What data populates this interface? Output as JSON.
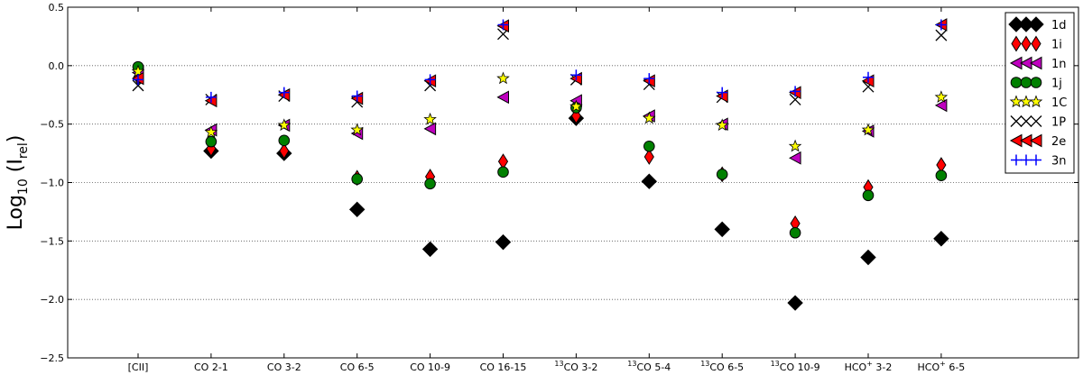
{
  "chart_data": {
    "type": "scatter",
    "title": "",
    "xlabel": "",
    "ylabel": {
      "main": "Log",
      "sub": "10",
      "open": " (I",
      "sub2": "rel",
      "close": ")"
    },
    "ylim": [
      -2.5,
      0.5
    ],
    "yticks": [
      {
        "v": 0.5,
        "label": "0.5"
      },
      {
        "v": 0.0,
        "label": "0.0"
      },
      {
        "v": -0.5,
        "label": "−0.5"
      },
      {
        "v": -1.0,
        "label": "−1.0"
      },
      {
        "v": -1.5,
        "label": "−1.5"
      },
      {
        "v": -2.0,
        "label": "−2.0"
      },
      {
        "v": -2.5,
        "label": "−2.5"
      }
    ],
    "grid": "y-dotted",
    "legend_position": "top-right",
    "categories": [
      {
        "pre": "",
        "sup": "",
        "mid": "[CII]",
        "sup2": "",
        "post": ""
      },
      {
        "pre": "",
        "sup": "",
        "mid": "CO 2-1",
        "sup2": "",
        "post": ""
      },
      {
        "pre": "",
        "sup": "",
        "mid": "CO 3-2",
        "sup2": "",
        "post": ""
      },
      {
        "pre": "",
        "sup": "",
        "mid": "CO 6-5",
        "sup2": "",
        "post": ""
      },
      {
        "pre": "",
        "sup": "",
        "mid": "CO 10-9",
        "sup2": "",
        "post": ""
      },
      {
        "pre": "",
        "sup": "",
        "mid": "CO 16-15",
        "sup2": "",
        "post": ""
      },
      {
        "pre": "",
        "sup": "13",
        "mid": "CO 3-2",
        "sup2": "",
        "post": ""
      },
      {
        "pre": "",
        "sup": "13",
        "mid": "CO 5-4",
        "sup2": "",
        "post": ""
      },
      {
        "pre": "",
        "sup": "13",
        "mid": "CO 6-5",
        "sup2": "",
        "post": ""
      },
      {
        "pre": "",
        "sup": "13",
        "mid": "CO 10-9",
        "sup2": "",
        "post": ""
      },
      {
        "pre": "",
        "sup": "",
        "mid": "HCO",
        "sup2": "+",
        "post": " 3-2"
      },
      {
        "pre": "",
        "sup": "",
        "mid": "HCO",
        "sup2": "+",
        "post": " 6-5"
      }
    ],
    "series": [
      {
        "name": "1d",
        "marker": "diamond",
        "color": "#000000",
        "values": [
          null,
          -0.73,
          -0.75,
          -1.23,
          -1.57,
          -1.51,
          -0.45,
          -0.99,
          -1.4,
          -2.03,
          -1.64,
          -1.48
        ]
      },
      {
        "name": "1i",
        "marker": "thin-diamond",
        "color": "#ff0000",
        "values": [
          -0.1,
          -0.71,
          -0.73,
          -0.96,
          -0.95,
          -0.82,
          -0.43,
          -0.78,
          -0.93,
          -1.35,
          -1.04,
          -0.85
        ]
      },
      {
        "name": "1n",
        "marker": "triangle-left",
        "color": "#bf00bf",
        "values": [
          -0.06,
          -0.55,
          -0.51,
          -0.58,
          -0.54,
          -0.27,
          -0.3,
          -0.43,
          -0.5,
          -0.79,
          -0.56,
          -0.34
        ]
      },
      {
        "name": "1j",
        "marker": "circle",
        "color": "#008000",
        "values": [
          -0.01,
          -0.65,
          -0.64,
          -0.97,
          -1.01,
          -0.91,
          -0.36,
          -0.69,
          -0.93,
          -1.43,
          -1.11,
          -0.94
        ]
      },
      {
        "name": "1C",
        "marker": "star",
        "color": "#ffff00",
        "values": [
          -0.05,
          -0.57,
          -0.51,
          -0.55,
          -0.46,
          -0.11,
          -0.35,
          -0.45,
          -0.51,
          -0.69,
          -0.55,
          -0.27
        ]
      },
      {
        "name": "1P",
        "marker": "x",
        "color": "#000000",
        "values": [
          -0.17,
          -0.29,
          -0.26,
          -0.31,
          -0.17,
          0.27,
          -0.12,
          -0.16,
          -0.27,
          -0.29,
          -0.18,
          0.26
        ]
      },
      {
        "name": "2e",
        "marker": "triangle-left",
        "color": "#ff0000",
        "values": [
          -0.11,
          -0.3,
          -0.25,
          -0.28,
          -0.13,
          0.34,
          -0.11,
          -0.13,
          -0.26,
          -0.23,
          -0.13,
          0.35
        ]
      },
      {
        "name": "3n",
        "marker": "plus",
        "color": "#0000ff",
        "values": [
          -0.12,
          -0.27,
          -0.23,
          -0.26,
          -0.12,
          0.35,
          -0.08,
          -0.11,
          -0.23,
          -0.22,
          -0.1,
          0.35
        ]
      }
    ]
  }
}
